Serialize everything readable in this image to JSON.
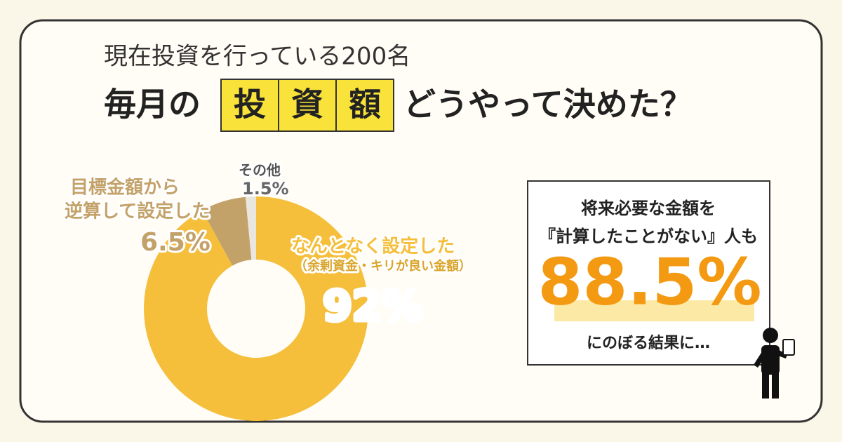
{
  "chart_data": {
    "type": "pie",
    "subtitle": "現在投資を行っている200名",
    "title": {
      "before": "毎月の",
      "boxed": [
        "投",
        "資",
        "額"
      ],
      "after": "どうやって決めた？"
    },
    "categories": [
      [
        "なんとなく設定した"
      ],
      [
        "目標金額から",
        "逆算して設定した"
      ],
      [
        "その他"
      ]
    ],
    "annotations": [
      "（余剰資金・キリが良い金額）"
    ],
    "values": [
      92,
      6.5,
      1.5
    ],
    "value_labels": [
      "92%",
      "6.5%",
      "1.5%"
    ],
    "colors": [
      "#f5be3b",
      "#c3a26a",
      "#e9e6df"
    ],
    "donut": true
  },
  "callout": {
    "lines": [
      "将来必要な金額を",
      "『計算したことがない』人も"
    ],
    "figure": "88.5%",
    "footer": "にのぼる結果に…"
  }
}
